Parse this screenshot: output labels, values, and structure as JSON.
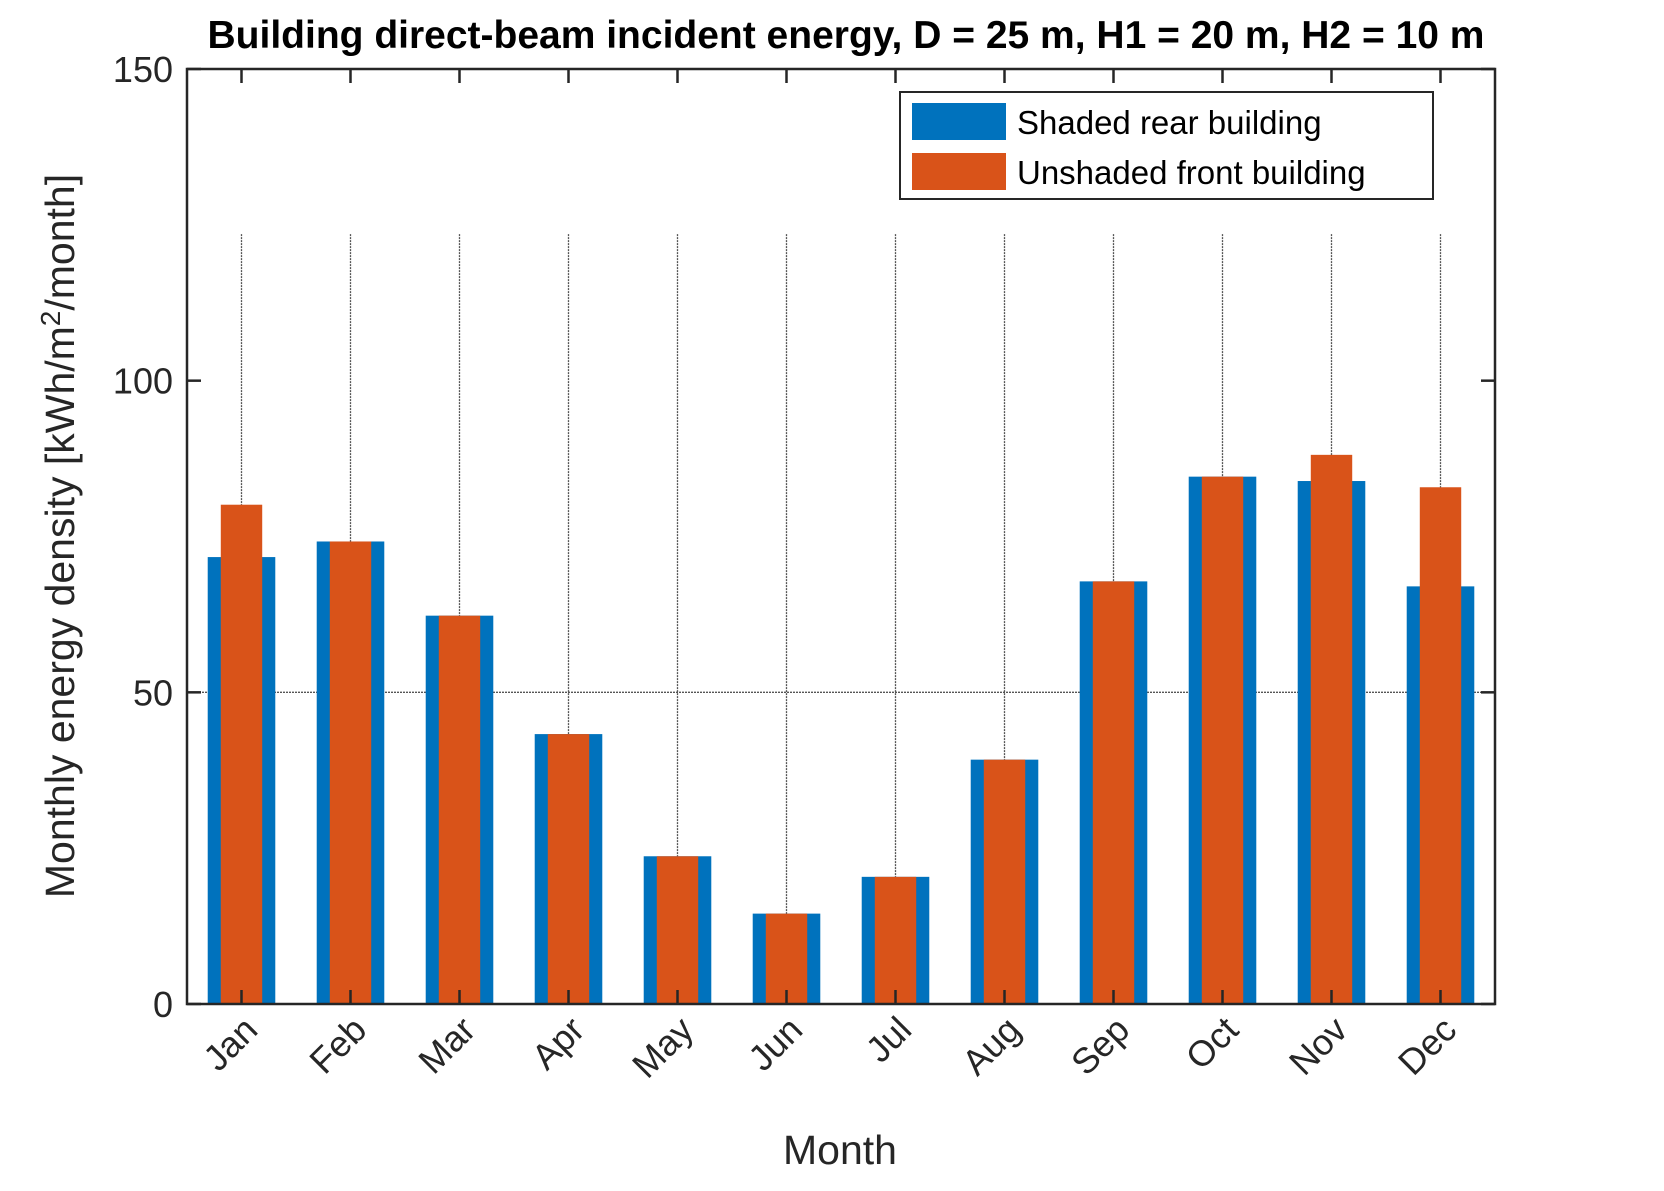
{
  "chart_data": {
    "type": "bar",
    "title": "Building direct-beam incident energy, D = 25 m, H1 = 20 m, H2 = 10 m",
    "xlabel": "Month",
    "ylabel_main": "Monthly energy density [kWh/m",
    "ylabel_sup": "2",
    "ylabel_tail": "/month]",
    "categories": [
      "Jan",
      "Feb",
      "Mar",
      "Apr",
      "May",
      "Jun",
      "Jul",
      "Aug",
      "Sep",
      "Oct",
      "Nov",
      "Dec"
    ],
    "ylim": [
      0,
      150
    ],
    "yticks": [
      0,
      50,
      100,
      150
    ],
    "grid": "vertical lines at each month and horizontal line at 50",
    "legend_position": "top-right",
    "series": [
      {
        "name": "Shaded rear building",
        "color": "#0072BD",
        "values": [
          71.7,
          74.2,
          62.3,
          43.3,
          23.7,
          14.5,
          20.4,
          39.2,
          67.8,
          84.6,
          83.9,
          67.0
        ]
      },
      {
        "name": "Unshaded front building",
        "color": "#D95319",
        "values": [
          80.1,
          74.2,
          62.3,
          43.3,
          23.7,
          14.5,
          20.4,
          39.2,
          67.8,
          84.6,
          88.1,
          82.9
        ]
      }
    ]
  }
}
